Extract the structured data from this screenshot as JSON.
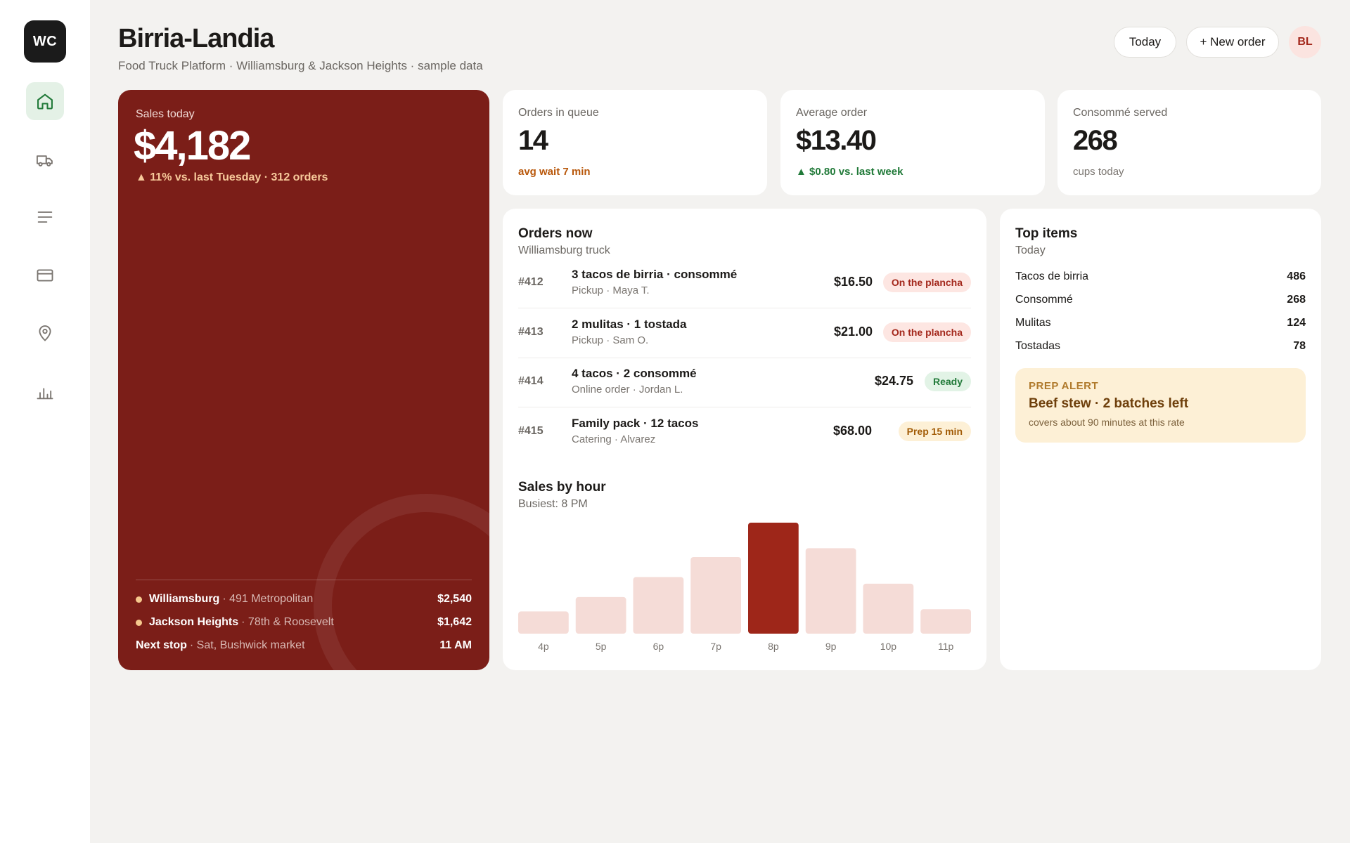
{
  "sidebar": {
    "logo": "WC",
    "items": [
      {
        "icon": "home-icon",
        "active": true
      },
      {
        "icon": "truck-icon",
        "active": false
      },
      {
        "icon": "list-icon",
        "active": false
      },
      {
        "icon": "card-icon",
        "active": false
      },
      {
        "icon": "location-pin-icon",
        "active": false
      },
      {
        "icon": "bar-chart-icon",
        "active": false
      }
    ]
  },
  "header": {
    "title": "Birria-Landia",
    "subtitle": "Food Truck Platform · Williamsburg & Jackson Heights · sample data",
    "today_label": "Today",
    "new_order_label": "+ New order",
    "avatar": "BL"
  },
  "hero": {
    "label": "Sales today",
    "value": "$4,182",
    "delta": "▲ 11% vs. last Tuesday · 312 orders",
    "locations": [
      {
        "name": "Williamsburg",
        "detail": "· 491 Metropolitan",
        "value": "$2,540"
      },
      {
        "name": "Jackson Heights",
        "detail": "· 78th & Roosevelt",
        "value": "$1,642"
      }
    ],
    "next_stop": {
      "name": "Next stop",
      "detail": "· Sat, Bushwick market",
      "value": "11 AM"
    }
  },
  "stats": [
    {
      "label": "Orders in queue",
      "value": "14",
      "sub": "avg wait 7 min",
      "sub_color": "#b8570a"
    },
    {
      "label": "Average order",
      "value": "$13.40",
      "sub": "▲ $0.80 vs. last week",
      "sub_color": "#217a39"
    },
    {
      "label": "Consommé served",
      "value": "268",
      "sub": "cups today",
      "sub_color": "#7a7570"
    }
  ],
  "orders": {
    "title": "Orders now",
    "subtitle": "Williamsburg truck",
    "rows": [
      {
        "id": "#412",
        "desc": "3 tacos de birria · consommé",
        "meta": "Pickup · Maya T.",
        "price": "$16.50",
        "status": "On the plancha",
        "kind": "plancha"
      },
      {
        "id": "#413",
        "desc": "2 mulitas · 1 tostada",
        "meta": "Pickup · Sam O.",
        "price": "$21.00",
        "status": "On the plancha",
        "kind": "plancha"
      },
      {
        "id": "#414",
        "desc": "4 tacos · 2 consommé",
        "meta": "Online order · Jordan L.",
        "price": "$24.75",
        "status": "Ready",
        "kind": "ready"
      },
      {
        "id": "#415",
        "desc": "Family pack · 12 tacos",
        "meta": "Catering · Alvarez",
        "price": "$68.00",
        "status": "Prep 15 min",
        "kind": "prep"
      }
    ]
  },
  "sales_chart": {
    "title": "Sales by hour",
    "subtitle": "Busiest: 8 PM"
  },
  "chart_data": {
    "type": "bar",
    "categories": [
      "4p",
      "5p",
      "6p",
      "7p",
      "8p",
      "9p",
      "10p",
      "11p"
    ],
    "values": [
      20,
      33,
      51,
      69,
      100,
      77,
      45,
      22
    ],
    "highlight": "8p",
    "colors": {
      "bar": "#f5dcd7",
      "highlight": "#9e2619"
    },
    "ylim": [
      0,
      100
    ],
    "grid": false
  },
  "top_items": {
    "title": "Top items",
    "subtitle": "Today",
    "rows": [
      {
        "name": "Tacos de birria",
        "count": "486"
      },
      {
        "name": "Consommé",
        "count": "268"
      },
      {
        "name": "Mulitas",
        "count": "124"
      },
      {
        "name": "Tostadas",
        "count": "78"
      }
    ],
    "alert": {
      "tag": "PREP ALERT",
      "title": "Beef stew · 2 batches left",
      "sub": "covers about 90 minutes at this rate"
    }
  },
  "colors": {
    "hero_bg": "#7b1e18",
    "accent_green": "#217a39",
    "accent_orange": "#b8570a"
  }
}
